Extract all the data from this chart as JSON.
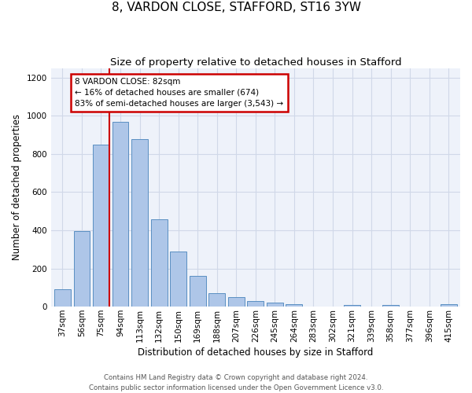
{
  "title": "8, VARDON CLOSE, STAFFORD, ST16 3YW",
  "subtitle": "Size of property relative to detached houses in Stafford",
  "xlabel": "Distribution of detached houses by size in Stafford",
  "ylabel": "Number of detached properties",
  "categories": [
    "37sqm",
    "56sqm",
    "75sqm",
    "94sqm",
    "113sqm",
    "132sqm",
    "150sqm",
    "169sqm",
    "188sqm",
    "207sqm",
    "226sqm",
    "245sqm",
    "264sqm",
    "283sqm",
    "302sqm",
    "321sqm",
    "339sqm",
    "358sqm",
    "377sqm",
    "396sqm",
    "415sqm"
  ],
  "values": [
    90,
    397,
    848,
    968,
    878,
    458,
    290,
    163,
    70,
    50,
    30,
    22,
    13,
    0,
    0,
    10,
    0,
    10,
    0,
    0,
    13
  ],
  "bar_color": "#aec6e8",
  "bar_edge_color": "#5a8fc2",
  "annotation_text": "8 VARDON CLOSE: 82sqm\n← 16% of detached houses are smaller (674)\n83% of semi-detached houses are larger (3,543) →",
  "annotation_box_color": "#ffffff",
  "annotation_box_edge_color": "#cc0000",
  "vline_color": "#cc0000",
  "ylim": [
    0,
    1250
  ],
  "yticks": [
    0,
    200,
    400,
    600,
    800,
    1000,
    1200
  ],
  "grid_color": "#d0d8e8",
  "background_color": "#eef2fa",
  "footer_text": "Contains HM Land Registry data © Crown copyright and database right 2024.\nContains public sector information licensed under the Open Government Licence v3.0.",
  "title_fontsize": 11,
  "subtitle_fontsize": 9.5,
  "xlabel_fontsize": 8.5,
  "ylabel_fontsize": 8.5,
  "tick_fontsize": 7.5,
  "annotation_fontsize": 7.5,
  "footer_fontsize": 6.2
}
